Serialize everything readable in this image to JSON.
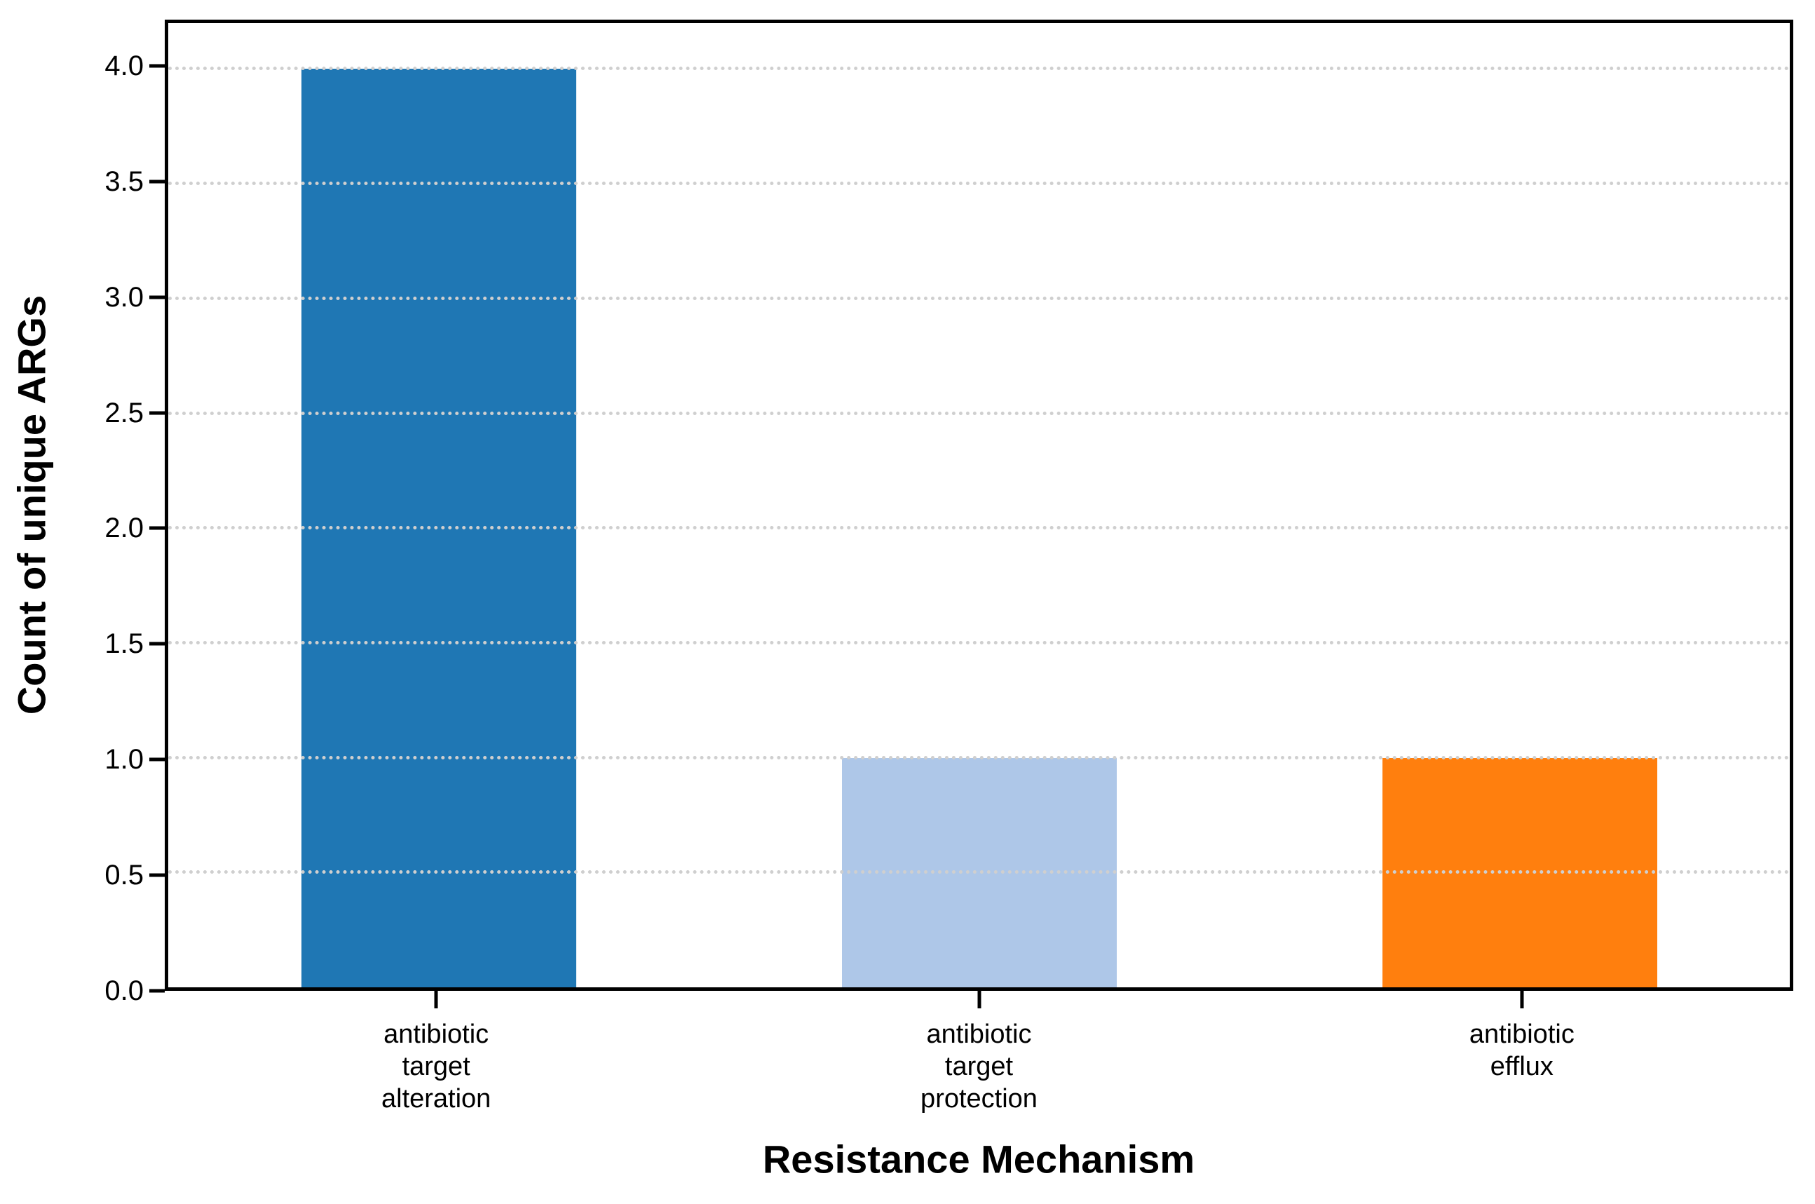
{
  "figure": {
    "background_color": "#ffffff",
    "spine_color": "#000000",
    "text_color": "#000000"
  },
  "chart_data": {
    "type": "bar",
    "title": "",
    "xlabel": "Resistance Mechanism",
    "ylabel": "Count of unique ARGs",
    "categories": [
      "antibiotic\ntarget\nalteration",
      "antibiotic\ntarget\nprotection",
      "antibiotic\nefflux"
    ],
    "values": [
      4,
      1,
      1
    ],
    "bar_colors": [
      "#1f77b4",
      "#aec7e8",
      "#ff7f0e"
    ],
    "ylim": [
      0,
      4.2
    ],
    "yticks": [
      0.0,
      0.5,
      1.0,
      1.5,
      2.0,
      2.5,
      3.0,
      3.5,
      4.0
    ],
    "ytick_labels": [
      "0.0",
      "0.5",
      "1.0",
      "1.5",
      "2.0",
      "2.5",
      "3.0",
      "3.5",
      "4.0"
    ],
    "grid": "horizontal dotted lines at each y tick, drawn above bars",
    "grid_color": "#cfcfcf",
    "legend_position": "none"
  }
}
